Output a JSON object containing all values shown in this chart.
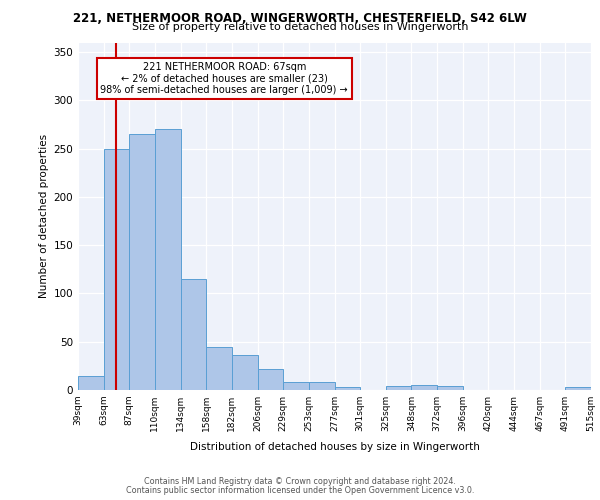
{
  "title_line1": "221, NETHERMOOR ROAD, WINGERWORTH, CHESTERFIELD, S42 6LW",
  "title_line2": "Size of property relative to detached houses in Wingerworth",
  "xlabel": "Distribution of detached houses by size in Wingerworth",
  "ylabel": "Number of detached properties",
  "bar_values": [
    15,
    250,
    265,
    270,
    115,
    45,
    36,
    22,
    8,
    8,
    3,
    0,
    4,
    5,
    4,
    0,
    0,
    0,
    0,
    3
  ],
  "bin_labels": [
    "39sqm",
    "63sqm",
    "87sqm",
    "110sqm",
    "134sqm",
    "158sqm",
    "182sqm",
    "206sqm",
    "229sqm",
    "253sqm",
    "277sqm",
    "301sqm",
    "325sqm",
    "348sqm",
    "372sqm",
    "396sqm",
    "420sqm",
    "444sqm",
    "467sqm",
    "491sqm",
    "515sqm"
  ],
  "bar_color": "#aec6e8",
  "bar_edge_color": "#5a9fd4",
  "vline_x": 1,
  "vline_color": "#cc0000",
  "annotation_line1": "221 NETHERMOOR ROAD: 67sqm",
  "annotation_line2": "← 2% of detached houses are smaller (23)",
  "annotation_line3": "98% of semi-detached houses are larger (1,009) →",
  "annotation_box_fc": "#ffffff",
  "annotation_box_ec": "#cc0000",
  "ylim": [
    0,
    360
  ],
  "yticks": [
    0,
    50,
    100,
    150,
    200,
    250,
    300,
    350
  ],
  "bg_color": "#eef2fa",
  "grid_color": "#ffffff",
  "footer_line1": "Contains HM Land Registry data © Crown copyright and database right 2024.",
  "footer_line2": "Contains public sector information licensed under the Open Government Licence v3.0."
}
